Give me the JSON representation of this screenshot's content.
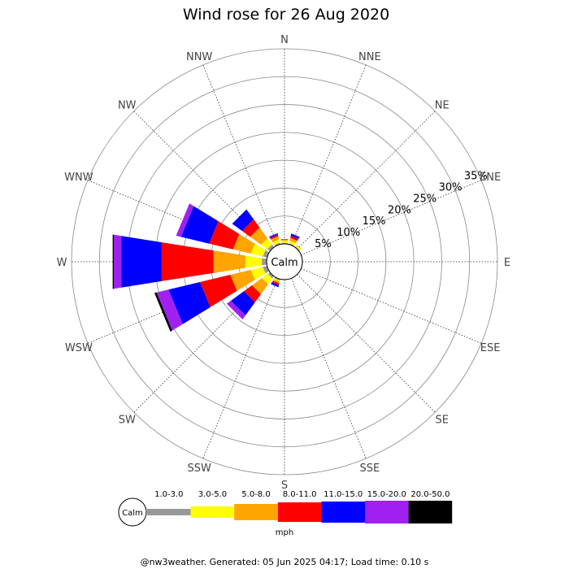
{
  "chart_data": {
    "type": "windrose",
    "title": "Wind rose for 26 Aug 2020",
    "center_label": "Calm",
    "directions": [
      "N",
      "NNE",
      "NE",
      "ENE",
      "E",
      "ESE",
      "SE",
      "SSE",
      "S",
      "SSW",
      "SW",
      "WSW",
      "W",
      "WNW",
      "NW",
      "NNW"
    ],
    "ring_labels": [
      "5%",
      "10%",
      "15%",
      "20%",
      "25%",
      "30%",
      "35%"
    ],
    "rmax_percent": 35,
    "speed_bins": [
      {
        "label": "1.0-3.0",
        "color": "#999999"
      },
      {
        "label": "3.0-5.0",
        "color": "#ffff00"
      },
      {
        "label": "5.0-8.0",
        "color": "#ffa500"
      },
      {
        "label": "8.0-11.0",
        "color": "#ff0000"
      },
      {
        "label": "11.0-15.0",
        "color": "#0000ff"
      },
      {
        "label": "15.0-20.0",
        "color": "#a020f0"
      },
      {
        "label": "20.0-50.0",
        "color": "#000000"
      }
    ],
    "units": "mph",
    "series": [
      {
        "direction": "NNW",
        "values": [
          0.3,
          0.6,
          0.6,
          0.3,
          0.2,
          0.1,
          0
        ]
      },
      {
        "direction": "NW",
        "values": [
          0.6,
          1.4,
          2.4,
          1.8,
          2.2,
          0,
          0
        ]
      },
      {
        "direction": "WNW",
        "values": [
          0.8,
          2.2,
          3.3,
          4.4,
          5.2,
          0.9,
          0
        ]
      },
      {
        "direction": "W",
        "values": [
          0.9,
          3.0,
          5.8,
          9.4,
          7.3,
          1.4,
          0.2
        ]
      },
      {
        "direction": "WSW",
        "values": [
          0.8,
          2.2,
          3.8,
          5.6,
          5.8,
          2.2,
          0.4
        ]
      },
      {
        "direction": "SW",
        "values": [
          0.5,
          1.3,
          2.2,
          1.8,
          2.9,
          0.9,
          0
        ]
      },
      {
        "direction": "SSW",
        "values": [
          0.3,
          0.2,
          0.3,
          0.3,
          0.4,
          0,
          0
        ]
      },
      {
        "direction": "N",
        "values": [
          0.2,
          0.4,
          0.2,
          0.1,
          0,
          0,
          0
        ]
      },
      {
        "direction": "NNE",
        "values": [
          0.2,
          0.5,
          0.5,
          0.4,
          0.4,
          0,
          0
        ]
      },
      {
        "direction": "NE",
        "values": [
          0.2,
          0.3,
          0.1,
          0,
          0,
          0,
          0
        ]
      }
    ]
  },
  "footer": "@nw3weather. Generated: 05 Jun 2025 04:17; Load time: 0.10 s"
}
